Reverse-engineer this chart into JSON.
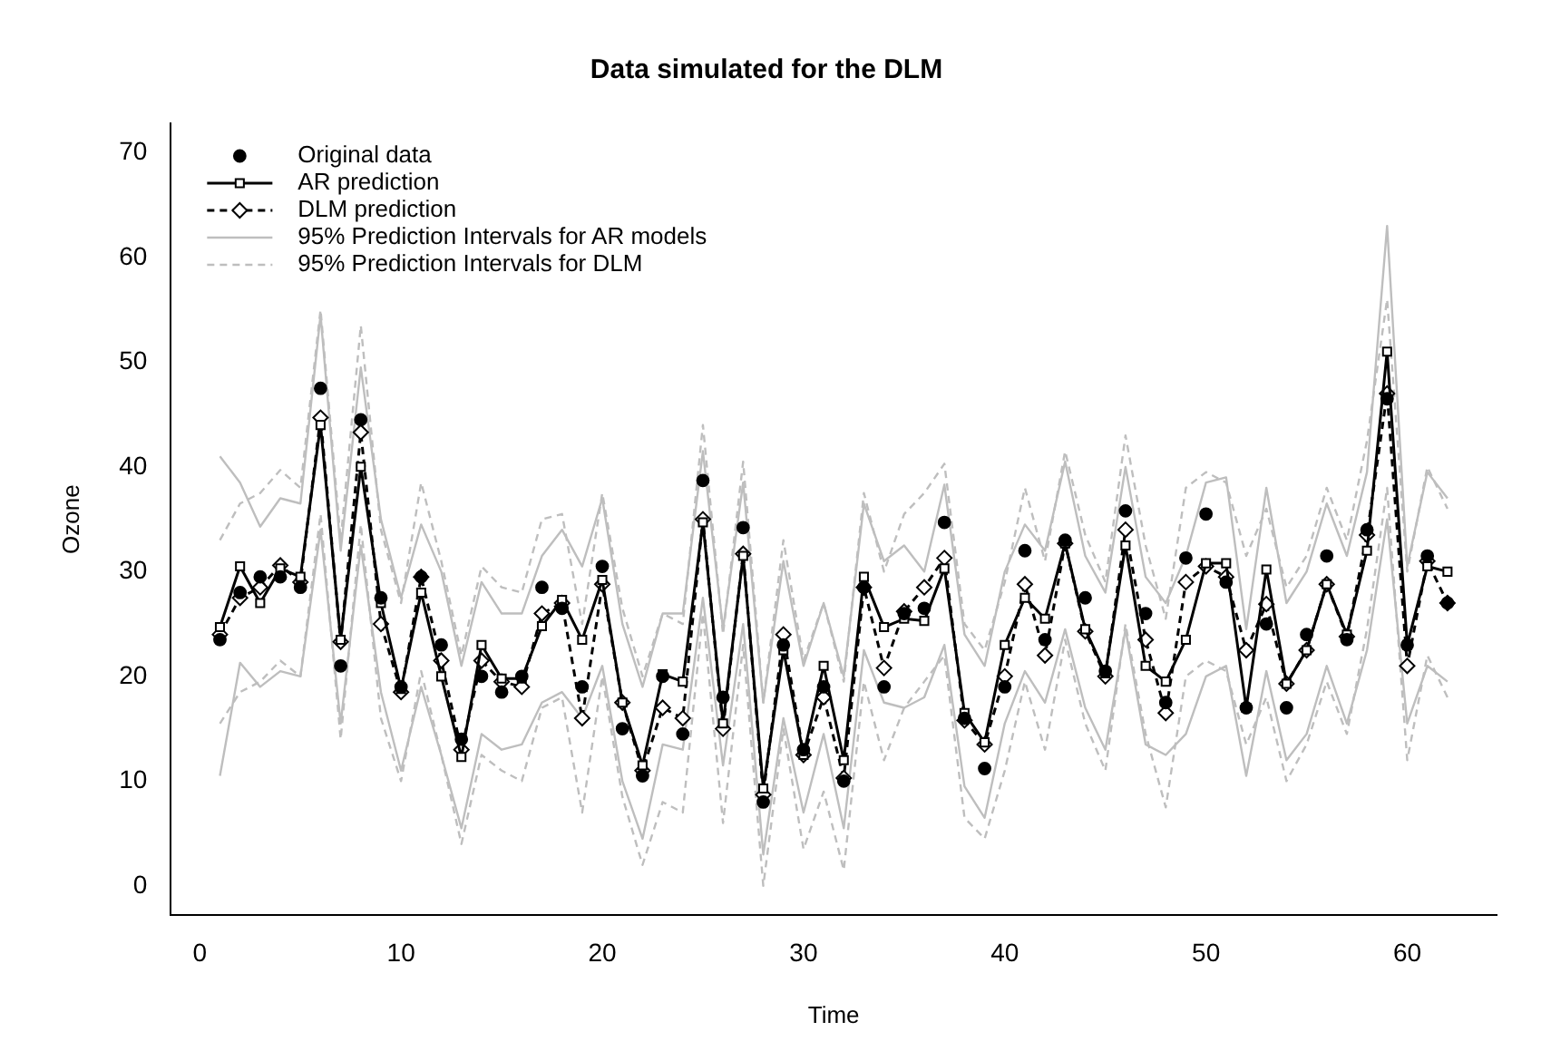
{
  "chart_data": {
    "type": "line",
    "title": "Data simulated for the DLM",
    "xlabel": "Time",
    "ylabel": "Ozone",
    "x": [
      1,
      2,
      3,
      4,
      5,
      6,
      7,
      8,
      9,
      10,
      11,
      12,
      13,
      14,
      15,
      16,
      17,
      18,
      19,
      20,
      21,
      22,
      23,
      24,
      25,
      26,
      27,
      28,
      29,
      30,
      31,
      32,
      33,
      34,
      35,
      36,
      37,
      38,
      39,
      40,
      41,
      42,
      43,
      44,
      45,
      46,
      47,
      48,
      49,
      50,
      51,
      52,
      53,
      54,
      55,
      56,
      57,
      58,
      59,
      60,
      61,
      62
    ],
    "xlim": [
      -1.44,
      64.44
    ],
    "xticks": [
      0,
      10,
      20,
      30,
      40,
      50,
      60
    ],
    "ylim": [
      -2.8,
      72.8
    ],
    "yticks": [
      0,
      10,
      20,
      30,
      40,
      50,
      60,
      70
    ],
    "grid": false,
    "legend": "top left",
    "series": [
      {
        "name": "Original data",
        "type": "scatter",
        "marker": "circle",
        "color": "#000000",
        "values": [
          23.5,
          28,
          29.5,
          29.5,
          28.5,
          47.5,
          21,
          44.5,
          27.5,
          19,
          29.5,
          23,
          14,
          20,
          18.5,
          20,
          28.5,
          26.5,
          19,
          30.5,
          15,
          10.5,
          20,
          14.5,
          38.7,
          18,
          34.2,
          8,
          23,
          13,
          19,
          10,
          28.5,
          19,
          26,
          26.5,
          34.7,
          16,
          11.2,
          19,
          32,
          23.5,
          33,
          27.5,
          20.5,
          35.8,
          26,
          17.5,
          31.3,
          35.5,
          29,
          17,
          25,
          17,
          24,
          31.5,
          23.5,
          34,
          46.5,
          23,
          31.5,
          27
        ]
      },
      {
        "name": "AR prediction",
        "type": "line",
        "marker": "square",
        "line_style": "solid",
        "color": "#000000",
        "values": [
          24.7,
          30.5,
          27,
          30.3,
          29.5,
          44,
          23.5,
          40,
          27,
          18.8,
          28,
          20,
          12.3,
          23,
          19.8,
          19.8,
          24.8,
          27.3,
          23.5,
          29.2,
          17.5,
          11.5,
          20.2,
          19.5,
          34.7,
          15.5,
          31.5,
          9.3,
          22.5,
          12.5,
          21,
          12,
          29.5,
          24.7,
          25.5,
          25.3,
          30.3,
          16.5,
          13.7,
          23,
          27.5,
          25.5,
          32.7,
          24.5,
          20.3,
          32.5,
          21,
          19.5,
          23.5,
          30.8,
          30.8,
          17,
          30.2,
          19.3,
          22.5,
          28.8,
          24,
          32,
          51,
          23,
          30.5,
          30
        ]
      },
      {
        "name": "DLM prediction",
        "type": "line",
        "marker": "diamond",
        "line_style": "dashed",
        "color": "#000000",
        "values": [
          24,
          27.5,
          28.5,
          30.6,
          29,
          44.7,
          23.3,
          43.3,
          25,
          18.5,
          29.5,
          21.5,
          13,
          21.5,
          19.5,
          19,
          26,
          27,
          16,
          28.8,
          17.5,
          11,
          17,
          16,
          35,
          15,
          31.7,
          8.7,
          24,
          12.5,
          18,
          10.3,
          28.5,
          20.8,
          26.2,
          28.5,
          31.3,
          15.8,
          13.5,
          20,
          28.8,
          22,
          32.7,
          24.3,
          20,
          34,
          23.5,
          16.5,
          29,
          30.5,
          29.5,
          22.5,
          26.9,
          19.3,
          22.5,
          28.8,
          23.8,
          33.5,
          47,
          21,
          31,
          27
        ]
      },
      {
        "name": "95% Prediction Intervals for AR models",
        "type": "line",
        "marker": "none",
        "line_style": "solid",
        "color": "#bebebe",
        "values": [
          41,
          38.5,
          34.3,
          37,
          36.5,
          54.5,
          32,
          49.5,
          35,
          27.5,
          34.5,
          30,
          21,
          29,
          26,
          26,
          31.5,
          34,
          30.5,
          37,
          25,
          19,
          26,
          26,
          41.5,
          24.5,
          38.5,
          17.5,
          31,
          21,
          27,
          20,
          36.5,
          31,
          32.5,
          30,
          38.3,
          24,
          21,
          30,
          34.5,
          32,
          40.5,
          31.5,
          28,
          40,
          29.5,
          27,
          31.5,
          38.5,
          39,
          24.5,
          38,
          27,
          30,
          36.5,
          31.5,
          39.5,
          63,
          30.5,
          39.5,
          37
        ]
      },
      {
        "type": "line",
        "marker": "none",
        "line_style": "solid",
        "color": "#bebebe",
        "values": [
          10.5,
          21.3,
          19,
          20.5,
          20,
          34,
          15.5,
          32.5,
          18.5,
          11,
          19,
          12.5,
          5.5,
          14.5,
          13,
          13.5,
          17.5,
          18.5,
          16,
          21,
          10,
          4.5,
          13.5,
          13,
          27.5,
          11.5,
          25,
          3,
          16,
          7,
          14.5,
          5.5,
          22.5,
          17.5,
          17,
          18,
          23,
          9.5,
          6.5,
          15.5,
          20.5,
          17.5,
          24.5,
          17,
          13,
          24.5,
          13.5,
          12.5,
          14.5,
          20,
          21,
          10.5,
          20.5,
          12,
          14.5,
          21,
          15.5,
          22.5,
          35,
          15.5,
          21,
          19.5
        ]
      },
      {
        "name": "95% Prediction Intervals for DLM",
        "type": "line",
        "marker": "none",
        "line_style": "dashed",
        "color": "#bebebe",
        "values": [
          33,
          36.5,
          37.5,
          39.7,
          38,
          55,
          33,
          53.5,
          34,
          27,
          38.5,
          31,
          22,
          30.5,
          28.5,
          28,
          35,
          35.5,
          25,
          37.5,
          26.5,
          20,
          26,
          25,
          44,
          24,
          40.5,
          17.5,
          33,
          21.5,
          27,
          19.5,
          37.5,
          30,
          35.5,
          37.5,
          40.3,
          25,
          22.5,
          29,
          38,
          31,
          41.5,
          33.5,
          29,
          43,
          32.5,
          25.5,
          38,
          39.5,
          38.5,
          31.5,
          36,
          28.5,
          31.5,
          38,
          33,
          42.5,
          56,
          30,
          40,
          36
        ]
      },
      {
        "type": "line",
        "marker": "none",
        "line_style": "dashed",
        "color": "#bebebe",
        "values": [
          15.5,
          18.5,
          19.5,
          21.5,
          20,
          35.5,
          14,
          34.5,
          16,
          10,
          20.5,
          12.5,
          4,
          12.5,
          11,
          10,
          17,
          18,
          7,
          20,
          8.5,
          2,
          8,
          7,
          26,
          6,
          23,
          0,
          15,
          3.5,
          9,
          1.5,
          19.5,
          12,
          17,
          19.5,
          22,
          6.5,
          4.5,
          11,
          19.5,
          13,
          23.5,
          15.5,
          11,
          25,
          14.5,
          7.5,
          20,
          21.5,
          20.5,
          13.5,
          18,
          10,
          13.5,
          19.5,
          14.5,
          24.5,
          38,
          12,
          22,
          18
        ]
      }
    ]
  }
}
